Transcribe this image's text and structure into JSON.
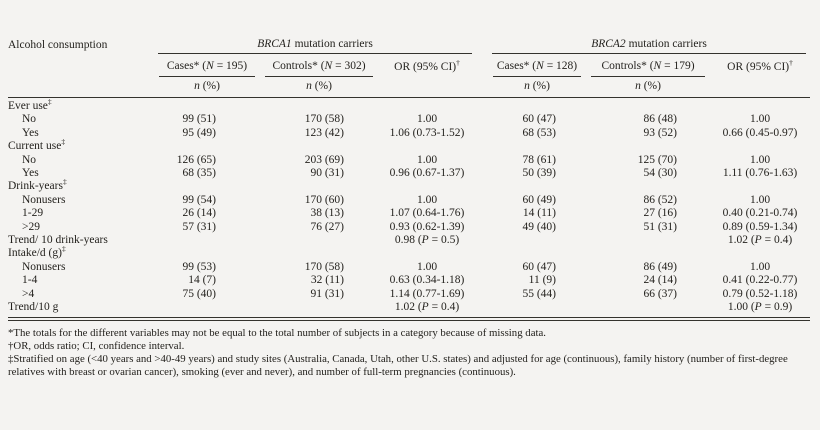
{
  "page": {
    "background": "#f4f3f1",
    "text_color": "#24221e",
    "rule_color": "#34322d"
  },
  "table": {
    "row_header": "Alcohol consumption",
    "groups": [
      {
        "label": "BRCA1 mutation carriers",
        "cases_header": "Cases* (N = 195)",
        "controls_header": "Controls* (N = 302)",
        "or_header": "OR (95% CI)†",
        "n_header": "n (%)"
      },
      {
        "label": "BRCA2 mutation carriers",
        "cases_header": "Cases* (N = 128)",
        "controls_header": "Controls* (N = 179)",
        "or_header": "OR (95% CI)†",
        "n_header": "n (%)"
      }
    ],
    "rows": [
      {
        "label": "Ever use‡",
        "type": "section",
        "cells": [
          "",
          "",
          "",
          "",
          "",
          ""
        ]
      },
      {
        "label": "No",
        "type": "item",
        "cells": [
          "99 (51)",
          "170 (58)",
          "1.00",
          "60 (47)",
          "86 (48)",
          "1.00"
        ]
      },
      {
        "label": "Yes",
        "type": "item",
        "cells": [
          "95 (49)",
          "123 (42)",
          "1.06 (0.73-1.52)",
          "68 (53)",
          "93 (52)",
          "0.66 (0.45-0.97)"
        ]
      },
      {
        "label": "Current use‡",
        "type": "section",
        "cells": [
          "",
          "",
          "",
          "",
          "",
          ""
        ]
      },
      {
        "label": "No",
        "type": "item",
        "cells": [
          "126 (65)",
          "203 (69)",
          "1.00",
          "78 (61)",
          "125 (70)",
          "1.00"
        ]
      },
      {
        "label": "Yes",
        "type": "item",
        "cells": [
          "68 (35)",
          "90 (31)",
          "0.96 (0.67-1.37)",
          "50 (39)",
          "54 (30)",
          "1.11 (0.76-1.63)"
        ]
      },
      {
        "label": "Drink-years‡",
        "type": "section",
        "cells": [
          "",
          "",
          "",
          "",
          "",
          ""
        ]
      },
      {
        "label": "Nonusers",
        "type": "item",
        "cells": [
          "99 (54)",
          "170 (60)",
          "1.00",
          "60 (49)",
          "86 (52)",
          "1.00"
        ]
      },
      {
        "label": "1-29",
        "type": "item",
        "cells": [
          "26 (14)",
          "38 (13)",
          "1.07 (0.64-1.76)",
          "14 (11)",
          "27 (16)",
          "0.40 (0.21-0.74)"
        ]
      },
      {
        "label": ">29",
        "type": "item",
        "cells": [
          "57 (31)",
          "76 (27)",
          "0.93 (0.62-1.39)",
          "49 (40)",
          "51 (31)",
          "0.89 (0.59-1.34)"
        ]
      },
      {
        "label": "Trend/ 10 drink-years",
        "type": "trend",
        "cells": [
          "",
          "",
          "0.98 (P = 0.5)",
          "",
          "",
          "1.02 (P = 0.4)"
        ]
      },
      {
        "label": "Intake/d (g)‡",
        "type": "section",
        "cells": [
          "",
          "",
          "",
          "",
          "",
          ""
        ]
      },
      {
        "label": "Nonusers",
        "type": "item",
        "cells": [
          "99 (53)",
          "170 (58)",
          "1.00",
          "60 (47)",
          "86 (49)",
          "1.00"
        ]
      },
      {
        "label": "1-4",
        "type": "item",
        "cells": [
          "14 (7)",
          "32 (11)",
          "0.63 (0.34-1.18)",
          "11 (9)",
          "24 (14)",
          "0.41 (0.22-0.77)"
        ]
      },
      {
        "label": ">4",
        "type": "item",
        "cells": [
          "75 (40)",
          "91 (31)",
          "1.14 (0.77-1.69)",
          "55 (44)",
          "66 (37)",
          "0.79 (0.52-1.18)"
        ]
      },
      {
        "label": "Trend/10 g",
        "type": "trend",
        "cells": [
          "",
          "",
          "1.02 (P = 0.4)",
          "",
          "",
          "1.00 (P = 0.9)"
        ]
      }
    ]
  },
  "footnotes": [
    "*The totals for the different variables may not be equal to the total number of subjects in a category because of missing data.",
    "†OR, odds ratio; CI, confidence interval.",
    "‡Stratified on age (<40 years and >40-49 years) and study sites (Australia, Canada, Utah, other U.S. states) and adjusted for age (continuous), family history (number of first-degree relatives with breast or ovarian cancer), smoking (ever and never), and number of full-term pregnancies (continuous)."
  ]
}
